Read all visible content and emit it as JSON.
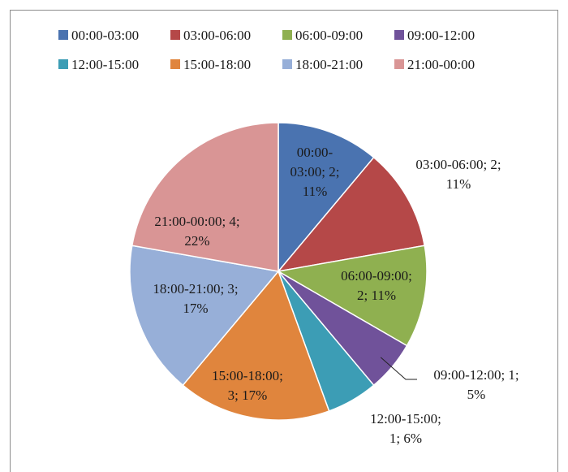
{
  "chart_data": {
    "type": "pie",
    "title": "",
    "legend_position": "top",
    "categories": [
      "00:00-03:00",
      "03:00-06:00",
      "06:00-09:00",
      "09:00-12:00",
      "12:00-15:00",
      "15:00-18:00",
      "18:00-21:00",
      "21:00-00:00"
    ],
    "values": [
      2,
      2,
      2,
      1,
      1,
      3,
      3,
      4
    ],
    "percent_labels": [
      "11%",
      "11%",
      "11%",
      "5%",
      "6%",
      "17%",
      "17%",
      "22%"
    ],
    "colors": [
      "#4a73b0",
      "#b54848",
      "#8fb050",
      "#70529a",
      "#3c9db5",
      "#e0853d",
      "#97afd8",
      "#d99595"
    ],
    "data_labels": [
      [
        "00:00-",
        "03:00;  2;",
        "11%"
      ],
      [
        "03:00-06:00;  2;",
        "11%"
      ],
      [
        "06:00-09:00;",
        "2; 11%"
      ],
      [
        "09:00-12:00;  1;",
        "5%"
      ],
      [
        "12:00-15:00;",
        "1; 6%"
      ],
      [
        "15:00-18:00;",
        "3; 17%"
      ],
      [
        "18:00-21:00;  3;",
        "17%"
      ],
      [
        "21:00-00:00;  4;",
        "22%"
      ]
    ]
  }
}
